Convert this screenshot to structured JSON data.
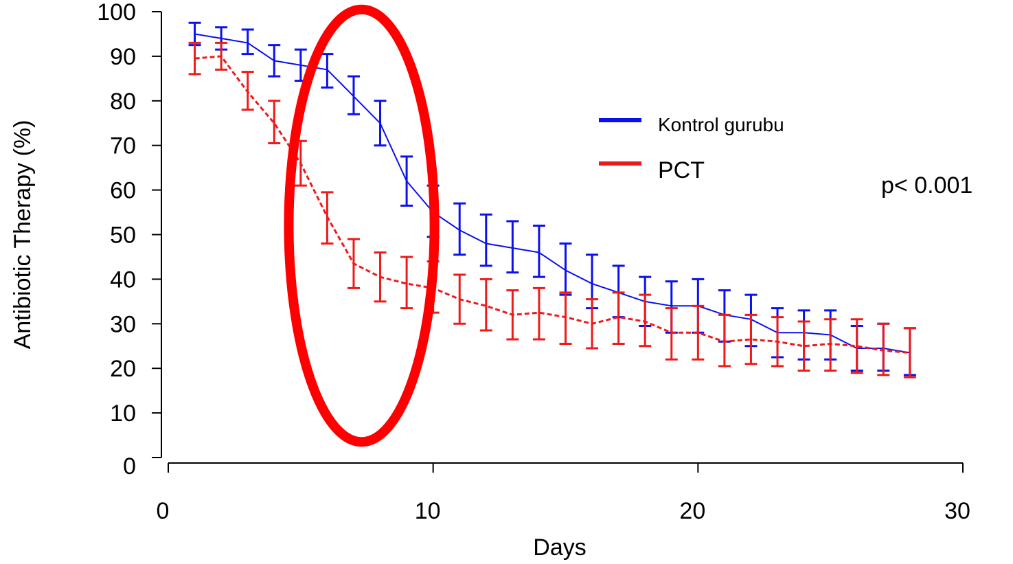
{
  "chart_data": {
    "type": "line",
    "xlabel": "Days",
    "ylabel": "Antibiotic Therapy (%)",
    "xlim": [
      0,
      30
    ],
    "ylim": [
      0,
      100
    ],
    "xticks": [
      0,
      10,
      20,
      30
    ],
    "yticks": [
      0,
      10,
      20,
      30,
      40,
      50,
      60,
      70,
      80,
      90,
      100
    ],
    "grid": false,
    "legend_position": "right",
    "series": [
      {
        "name": "Kontrol gurubu",
        "color": "#0a10ee",
        "line_style": "solid",
        "x": [
          1,
          2,
          3,
          4,
          5,
          6,
          7,
          8,
          9,
          10,
          11,
          12,
          13,
          14,
          15,
          16,
          17,
          18,
          19,
          20,
          21,
          22,
          23,
          24,
          25,
          26,
          27,
          28
        ],
        "y": [
          95,
          94,
          93,
          89,
          88,
          87,
          81,
          75,
          62,
          55,
          51,
          48,
          47,
          46,
          42,
          39,
          37,
          35,
          34,
          34,
          32,
          31,
          28,
          28,
          27.5,
          24.5,
          24.5,
          23.5
        ],
        "err_low": [
          92.5,
          91.5,
          90.5,
          85.5,
          84.5,
          83,
          77,
          70,
          56.5,
          49.5,
          45.5,
          43,
          41.5,
          40.5,
          36.5,
          33.5,
          31.5,
          29.5,
          28,
          28,
          26,
          25,
          22.5,
          22,
          22,
          19.5,
          19.5,
          18.5
        ],
        "err_high": [
          97.5,
          96.5,
          96,
          92.5,
          91.5,
          90.5,
          85.5,
          80,
          67.5,
          61,
          57,
          54.5,
          53,
          52,
          48,
          45.5,
          43,
          40.5,
          39.5,
          40,
          37.5,
          36.5,
          33.5,
          33,
          33,
          29.5,
          30,
          29
        ]
      },
      {
        "name": "PCT",
        "color": "#ee1a1a",
        "line_style": "dashed",
        "x": [
          1,
          2,
          3,
          4,
          5,
          6,
          7,
          8,
          9,
          10,
          11,
          12,
          13,
          14,
          15,
          16,
          17,
          18,
          19,
          20,
          21,
          22,
          23,
          24,
          25,
          26,
          27,
          28
        ],
        "y": [
          89.5,
          90,
          82,
          75,
          66,
          54,
          43.5,
          40.5,
          39,
          38,
          35.5,
          34,
          32,
          32.5,
          31.5,
          30,
          31.5,
          30.5,
          28,
          28,
          26,
          26.5,
          26,
          25,
          25.5,
          25,
          24,
          23.5
        ],
        "err_low": [
          86,
          87,
          78,
          70.5,
          61,
          48,
          38,
          35,
          33.5,
          32.5,
          30,
          28.5,
          26.5,
          26.5,
          25.5,
          24.5,
          25.5,
          25,
          22,
          22,
          20.5,
          21,
          20.5,
          19.5,
          19.5,
          19,
          18.5,
          18
        ],
        "err_high": [
          93,
          93,
          86.5,
          80,
          71,
          59.5,
          49,
          46,
          45,
          44,
          41,
          40,
          37.5,
          38,
          37,
          35.5,
          37,
          36.5,
          33.5,
          34,
          32,
          32,
          31.5,
          30.5,
          31,
          31,
          30,
          29
        ]
      }
    ],
    "annotations": [
      "p< 0.001"
    ],
    "highlight": {
      "shape": "ellipse",
      "color": "#ff0000",
      "center": [
        7.3,
        52
      ],
      "x_radius": 2.75,
      "y_radius": 48.5
    }
  }
}
